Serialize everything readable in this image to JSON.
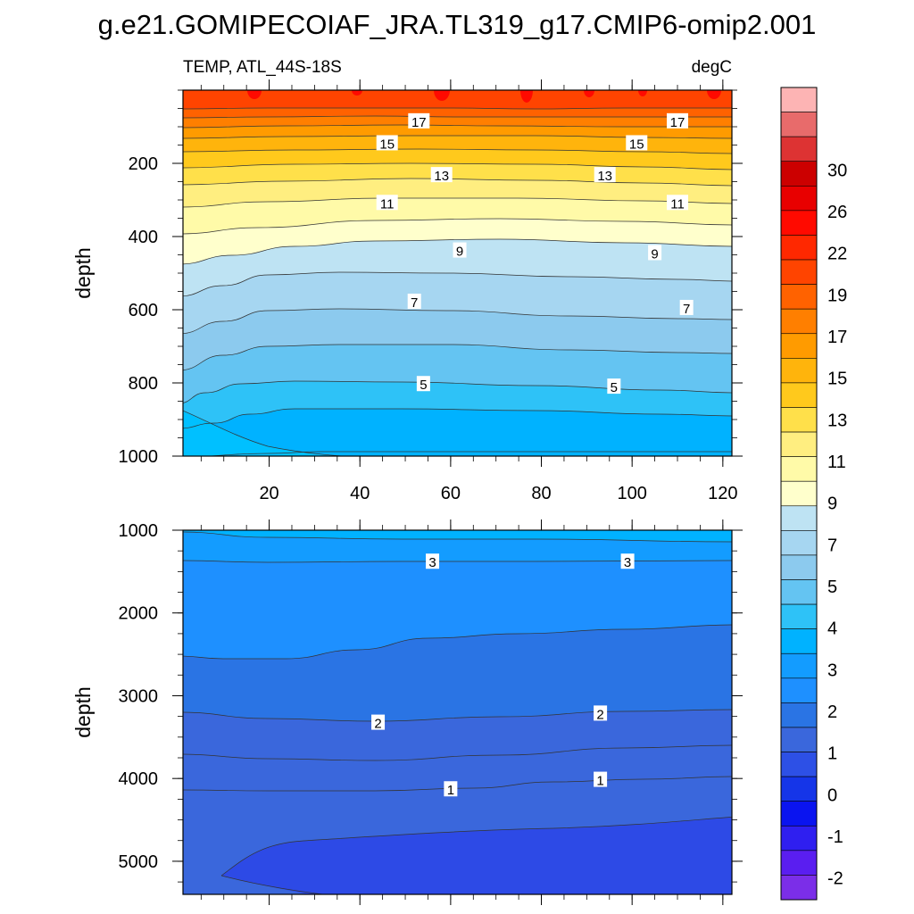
{
  "title": "g.e21.GOMIPECOIAF_JRA.TL319_g17.CMIP6-omip2.001",
  "chart_data": {
    "type": "heatmap",
    "variable_label": "TEMP, ATL_44S-18S",
    "units_label": "degC",
    "x_ticks": [
      20,
      40,
      60,
      80,
      100,
      120
    ],
    "x_range": [
      1,
      122
    ],
    "top_panel": {
      "ylabel": "depth",
      "y_range": [
        0,
        1000
      ],
      "y_reversed": true,
      "y_ticks": [
        200,
        400,
        600,
        800,
        1000
      ],
      "contour_labels": [
        {
          "text": "17",
          "x": 53,
          "y": 85
        },
        {
          "text": "17",
          "x": 110,
          "y": 85
        },
        {
          "text": "15",
          "x": 46,
          "y": 145
        },
        {
          "text": "15",
          "x": 101,
          "y": 145
        },
        {
          "text": "13",
          "x": 58,
          "y": 232
        },
        {
          "text": "13",
          "x": 94,
          "y": 232
        },
        {
          "text": "11",
          "x": 46,
          "y": 308
        },
        {
          "text": "11",
          "x": 110,
          "y": 308
        },
        {
          "text": "9",
          "x": 62,
          "y": 438
        },
        {
          "text": "9",
          "x": 105,
          "y": 445
        },
        {
          "text": "7",
          "x": 52,
          "y": 578
        },
        {
          "text": "7",
          "x": 112,
          "y": 595
        },
        {
          "text": "5",
          "x": 54,
          "y": 803
        },
        {
          "text": "5",
          "x": 96,
          "y": 810
        }
      ]
    },
    "bottom_panel": {
      "ylabel": "depth",
      "y_range": [
        1000,
        5400
      ],
      "y_reversed": true,
      "y_ticks": [
        1000,
        2000,
        3000,
        4000,
        5000
      ],
      "contour_labels": [
        {
          "text": "3",
          "x": 56,
          "y": 1380
        },
        {
          "text": "3",
          "x": 99,
          "y": 1380
        },
        {
          "text": "2",
          "x": 44,
          "y": 3325
        },
        {
          "text": "2",
          "x": 93,
          "y": 3215
        },
        {
          "text": "1",
          "x": 60,
          "y": 4130
        },
        {
          "text": "1",
          "x": 93,
          "y": 4015
        }
      ]
    },
    "colorbar": {
      "levels": [
        -2,
        -1,
        0,
        1,
        2,
        3,
        4,
        5,
        6,
        7,
        8,
        9,
        10,
        11,
        12,
        13,
        14,
        15,
        16,
        17,
        18,
        19,
        20,
        22,
        24,
        26,
        28,
        30,
        32
      ],
      "tick_labels": [
        "-2",
        "-1",
        "0",
        "1",
        "2",
        "3",
        "4",
        "5",
        "7",
        "9",
        "11",
        "13",
        "15",
        "17",
        "19",
        "22",
        "26",
        "30"
      ],
      "colors": [
        "#7b2ee8",
        "#5a1ef0",
        "#2f1ff0",
        "#0a14f0",
        "#1535e8",
        "#2d50e6",
        "#3a67dc",
        "#2a74e4",
        "#1e90ff",
        "#139cff",
        "#00b2ff",
        "#2ec2f7",
        "#64c4f2",
        "#8ccaee",
        "#a6d6f1",
        "#bee3f3",
        "#ffffcc",
        "#fffaa8",
        "#ffee80",
        "#ffe04a",
        "#ffc91c",
        "#ffb40c",
        "#ff9b00",
        "#ff7f00",
        "#ff6200",
        "#ff4400",
        "#ff2800",
        "#ff0a00",
        "#e80000",
        "#cc0000",
        "#dd3333",
        "#e86b6b",
        "#fdb4b4"
      ]
    }
  }
}
